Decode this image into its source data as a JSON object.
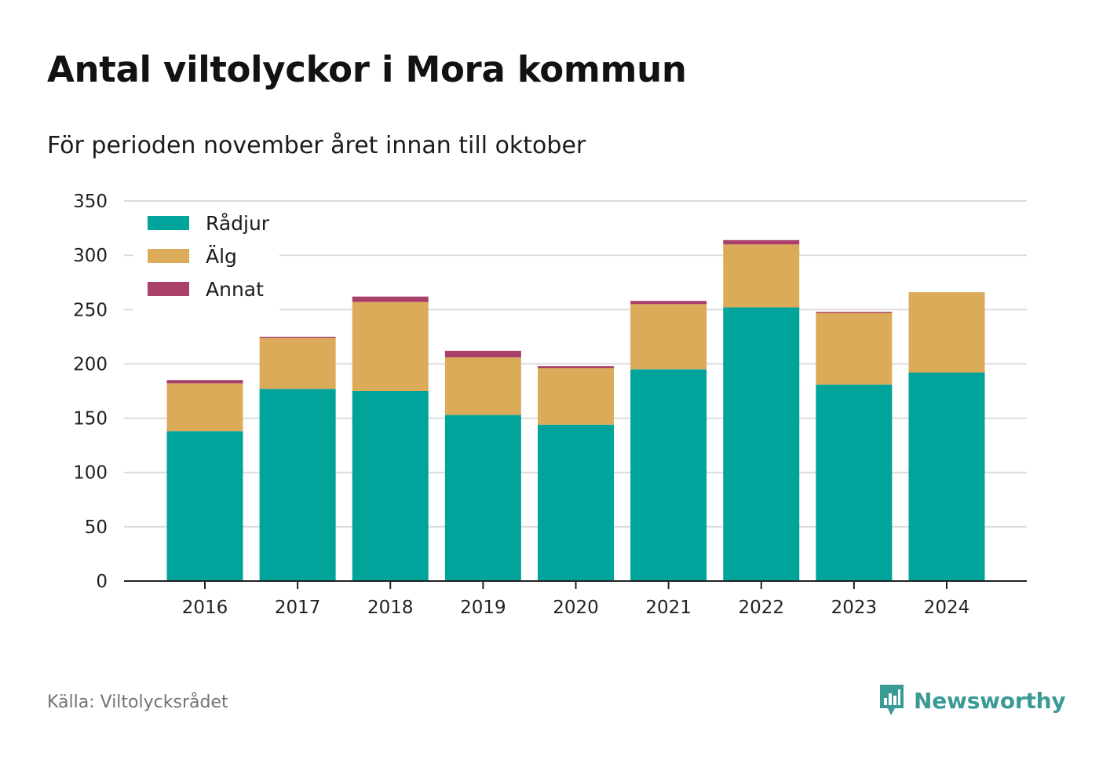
{
  "title": "Antal viltolyckor i Mora kommun",
  "subtitle": "För perioden november året innan till oktober",
  "source": "Källa: Viltolycksrådet",
  "brand": {
    "name": "Newsworthy",
    "color": "#3a9a96",
    "icon": "chart-speech-bubble-icon"
  },
  "colors": {
    "axis": "#222222",
    "grid": "#dcdcdc",
    "tick_text": "#222222"
  },
  "chart_data": {
    "type": "bar",
    "stacked": true,
    "categories": [
      "2016",
      "2017",
      "2018",
      "2019",
      "2020",
      "2021",
      "2022",
      "2023",
      "2024"
    ],
    "series": [
      {
        "name": "Rådjur",
        "color": "#00a49a",
        "values": [
          138,
          177,
          175,
          153,
          144,
          195,
          252,
          181,
          192
        ]
      },
      {
        "name": "Älg",
        "color": "#dbab5a",
        "values": [
          44,
          47,
          82,
          53,
          52,
          60,
          58,
          66,
          74
        ]
      },
      {
        "name": "Annat",
        "color": "#a8406a",
        "values": [
          3,
          1,
          5,
          6,
          2,
          3,
          4,
          1,
          0
        ]
      }
    ],
    "ylim": [
      0,
      350
    ],
    "yticks": [
      0,
      50,
      100,
      150,
      200,
      250,
      300,
      350
    ],
    "xlabel": "",
    "ylabel": "",
    "grid": true,
    "legend_position": "top-left"
  }
}
